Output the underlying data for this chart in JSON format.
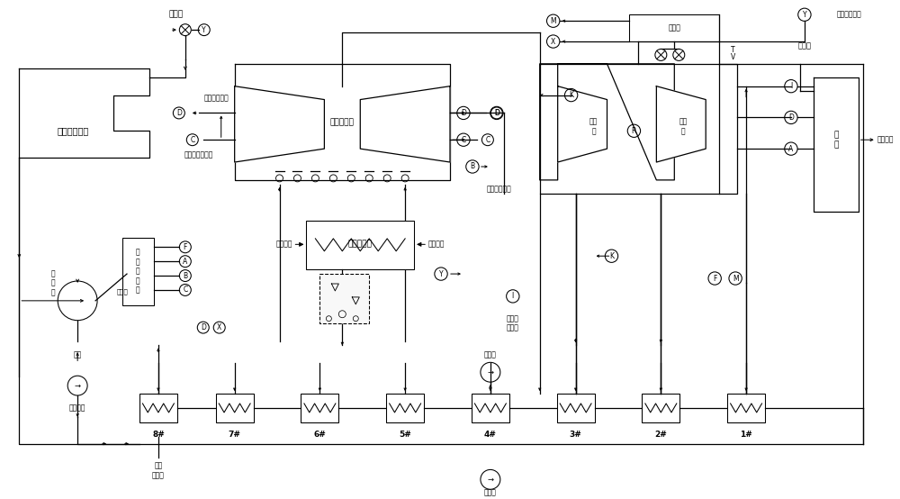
{
  "bg": "#ffffff",
  "lc": "#000000",
  "lw": 1.0,
  "labels": {
    "main_valve": "主汽阀",
    "feed_pump_turbine": "给水泵汽轮机",
    "dual_lp": "双流低压缸",
    "lp_eco": "低压省煤器",
    "shaft_seal_adj_text": "轴\n封\n调\n节\n器",
    "condenser_text": "冷\n凝\n器",
    "cond_pump": "凝结水泵",
    "shaft_seal_cooler_bottom": "轴封\n冷却器",
    "boiler_text": "锅\n炉",
    "boiler_loss": "锅炉损失",
    "steam_room": "蒸气室",
    "main_steam": "主蒸汽",
    "hp_cyl": "高压\n缸",
    "ip_cyl": "中压\n缸",
    "hp_source": "小机高压汽源",
    "to_seal_cooler": "去轴封冷却器",
    "lp_seal_supply": "低压缸轴封供气",
    "to_seal_adj": "去轴封调节器",
    "smoke_in": "烟气进口",
    "smoke_out": "烟气出口",
    "makeup": "补水",
    "boiler_spray": "锅炉调\n温喷水",
    "feed_pump": "给水泵",
    "pre_pump": "前置泵",
    "overflow": "溢流量",
    "heaters": [
      "8#",
      "7#",
      "6#",
      "5#",
      "4#",
      "3#",
      "2#",
      "1#"
    ]
  }
}
